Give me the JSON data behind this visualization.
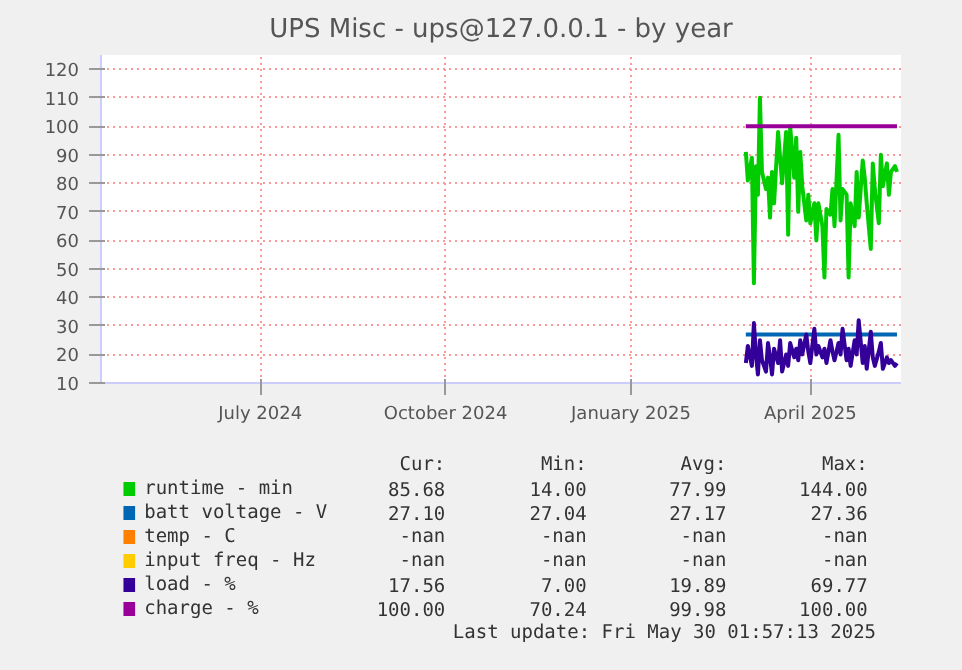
{
  "chart_data": {
    "type": "line",
    "title": "UPS Misc - ups@127.0.0.1 - by year",
    "x": [
      "2025-03-14",
      "2025-03-15",
      "2025-03-17",
      "2025-03-18",
      "2025-03-19",
      "2025-03-20",
      "2025-03-21",
      "2025-03-22",
      "2025-03-24",
      "2025-03-25",
      "2025-03-26",
      "2025-03-27",
      "2025-03-28",
      "2025-03-30",
      "2025-03-31",
      "2025-04-01",
      "2025-04-03",
      "2025-04-04",
      "2025-04-05",
      "2025-04-07",
      "2025-04-08",
      "2025-04-09",
      "2025-04-10",
      "2025-04-11",
      "2025-04-13",
      "2025-04-14",
      "2025-04-15",
      "2025-04-17",
      "2025-04-18",
      "2025-04-19",
      "2025-04-21",
      "2025-04-22",
      "2025-04-23",
      "2025-04-25",
      "2025-04-26",
      "2025-04-27",
      "2025-04-29",
      "2025-04-30",
      "2025-05-01",
      "2025-05-03",
      "2025-05-04",
      "2025-05-05",
      "2025-05-07",
      "2025-05-08",
      "2025-05-09",
      "2025-05-11",
      "2025-05-12",
      "2025-05-13",
      "2025-05-15",
      "2025-05-16",
      "2025-05-17",
      "2025-05-19",
      "2025-05-20",
      "2025-05-21",
      "2025-05-23",
      "2025-05-24",
      "2025-05-25",
      "2025-05-27",
      "2025-05-28"
    ],
    "series": [
      {
        "name": "runtime - min",
        "color": "#00cc00",
        "values": [
          91,
          81,
          89,
          45,
          86,
          76,
          110,
          84,
          78,
          82,
          68,
          84,
          73,
          98,
          89,
          80,
          98,
          62,
          100,
          82,
          96,
          70,
          91,
          79,
          67,
          76,
          66,
          73,
          60,
          73,
          65,
          47,
          71,
          69,
          78,
          65,
          97,
          67,
          78,
          76,
          47,
          73,
          65,
          84,
          68,
          88,
          82,
          73,
          57,
          87,
          78,
          66,
          90,
          79,
          87,
          76,
          84,
          86,
          84
        ]
      },
      {
        "name": "batt voltage - V",
        "color": "#0066b3",
        "values": [
          27,
          27,
          27,
          27,
          27,
          27,
          27,
          27,
          27,
          27,
          27,
          27,
          27,
          27,
          27,
          27,
          27,
          27,
          27,
          27,
          27,
          27,
          27,
          27,
          27,
          27,
          27,
          27,
          27,
          27,
          27,
          27,
          27,
          27,
          27,
          27,
          27,
          27,
          27,
          27,
          27,
          27,
          27,
          27,
          27,
          27,
          27,
          27,
          27,
          27,
          27,
          27,
          27,
          27,
          27,
          27,
          27,
          27,
          27
        ]
      },
      {
        "name": "temp - C",
        "color": "#ff8000",
        "values": [
          null,
          null,
          null,
          null,
          null,
          null,
          null,
          null,
          null,
          null,
          null,
          null,
          null,
          null,
          null,
          null,
          null,
          null,
          null,
          null,
          null,
          null,
          null,
          null,
          null,
          null,
          null,
          null,
          null,
          null,
          null,
          null,
          null,
          null,
          null,
          null,
          null,
          null,
          null,
          null,
          null,
          null,
          null,
          null,
          null,
          null,
          null,
          null,
          null,
          null,
          null,
          null,
          null,
          null,
          null,
          null,
          null,
          null,
          null
        ]
      },
      {
        "name": "input freq - Hz",
        "color": "#ffcc00",
        "values": [
          null,
          null,
          null,
          null,
          null,
          null,
          null,
          null,
          null,
          null,
          null,
          null,
          null,
          null,
          null,
          null,
          null,
          null,
          null,
          null,
          null,
          null,
          null,
          null,
          null,
          null,
          null,
          null,
          null,
          null,
          null,
          null,
          null,
          null,
          null,
          null,
          null,
          null,
          null,
          null,
          null,
          null,
          null,
          null,
          null,
          null,
          null,
          null,
          null,
          null,
          null,
          null,
          null,
          null,
          null,
          null,
          null,
          null,
          null
        ]
      },
      {
        "name": "load - %",
        "color": "#330099",
        "values": [
          17,
          23,
          16,
          31,
          20,
          13,
          25,
          18,
          14,
          24,
          19,
          13,
          22,
          17,
          25,
          14,
          20,
          16,
          24,
          19,
          22,
          18,
          25,
          20,
          27,
          21,
          17,
          29,
          20,
          23,
          19,
          22,
          17,
          25,
          21,
          18,
          24,
          20,
          29,
          18,
          22,
          16,
          25,
          20,
          32,
          17,
          23,
          15,
          28,
          19,
          16,
          21,
          24,
          15,
          19,
          17,
          18,
          16,
          17
        ]
      },
      {
        "name": "charge - %",
        "color": "#990099",
        "values": [
          100,
          100,
          100,
          100,
          100,
          100,
          100,
          100,
          100,
          100,
          100,
          100,
          100,
          100,
          100,
          100,
          100,
          100,
          100,
          100,
          100,
          100,
          100,
          100,
          100,
          100,
          100,
          100,
          100,
          100,
          100,
          100,
          100,
          100,
          100,
          100,
          100,
          100,
          100,
          100,
          100,
          100,
          100,
          100,
          100,
          100,
          100,
          100,
          100,
          100,
          100,
          100,
          100,
          100,
          100,
          100,
          100,
          100,
          100
        ]
      }
    ],
    "xlim": [
      "2024-04-28",
      "2025-05-30"
    ],
    "xticks": [
      {
        "value": "2024-07-16",
        "label": "July 2024"
      },
      {
        "value": "2024-10-16",
        "label": "October 2024"
      },
      {
        "value": "2025-01-16",
        "label": "January 2025"
      },
      {
        "value": "2025-04-15",
        "label": "April 2025"
      }
    ],
    "ylim": [
      10,
      125
    ],
    "yticks": [
      10,
      20,
      30,
      40,
      50,
      60,
      70,
      80,
      90,
      100,
      110,
      120
    ],
    "grid": true,
    "legend": "bottom",
    "annotations": [
      "Cur:",
      "Min:",
      "Avg:",
      "Max:",
      "85.68",
      "14.00",
      "77.99",
      "144.00",
      "27.10",
      "27.04",
      "27.17",
      "27.36",
      "-nan",
      "-nan",
      "-nan",
      "-nan",
      "-nan",
      "-nan",
      "-nan",
      "-nan",
      "17.56",
      "7.00",
      "19.89",
      "69.77",
      "100.00",
      "70.24",
      "99.98",
      "100.00",
      "Last update: Fri May 30 01:57:13 2025"
    ]
  }
}
